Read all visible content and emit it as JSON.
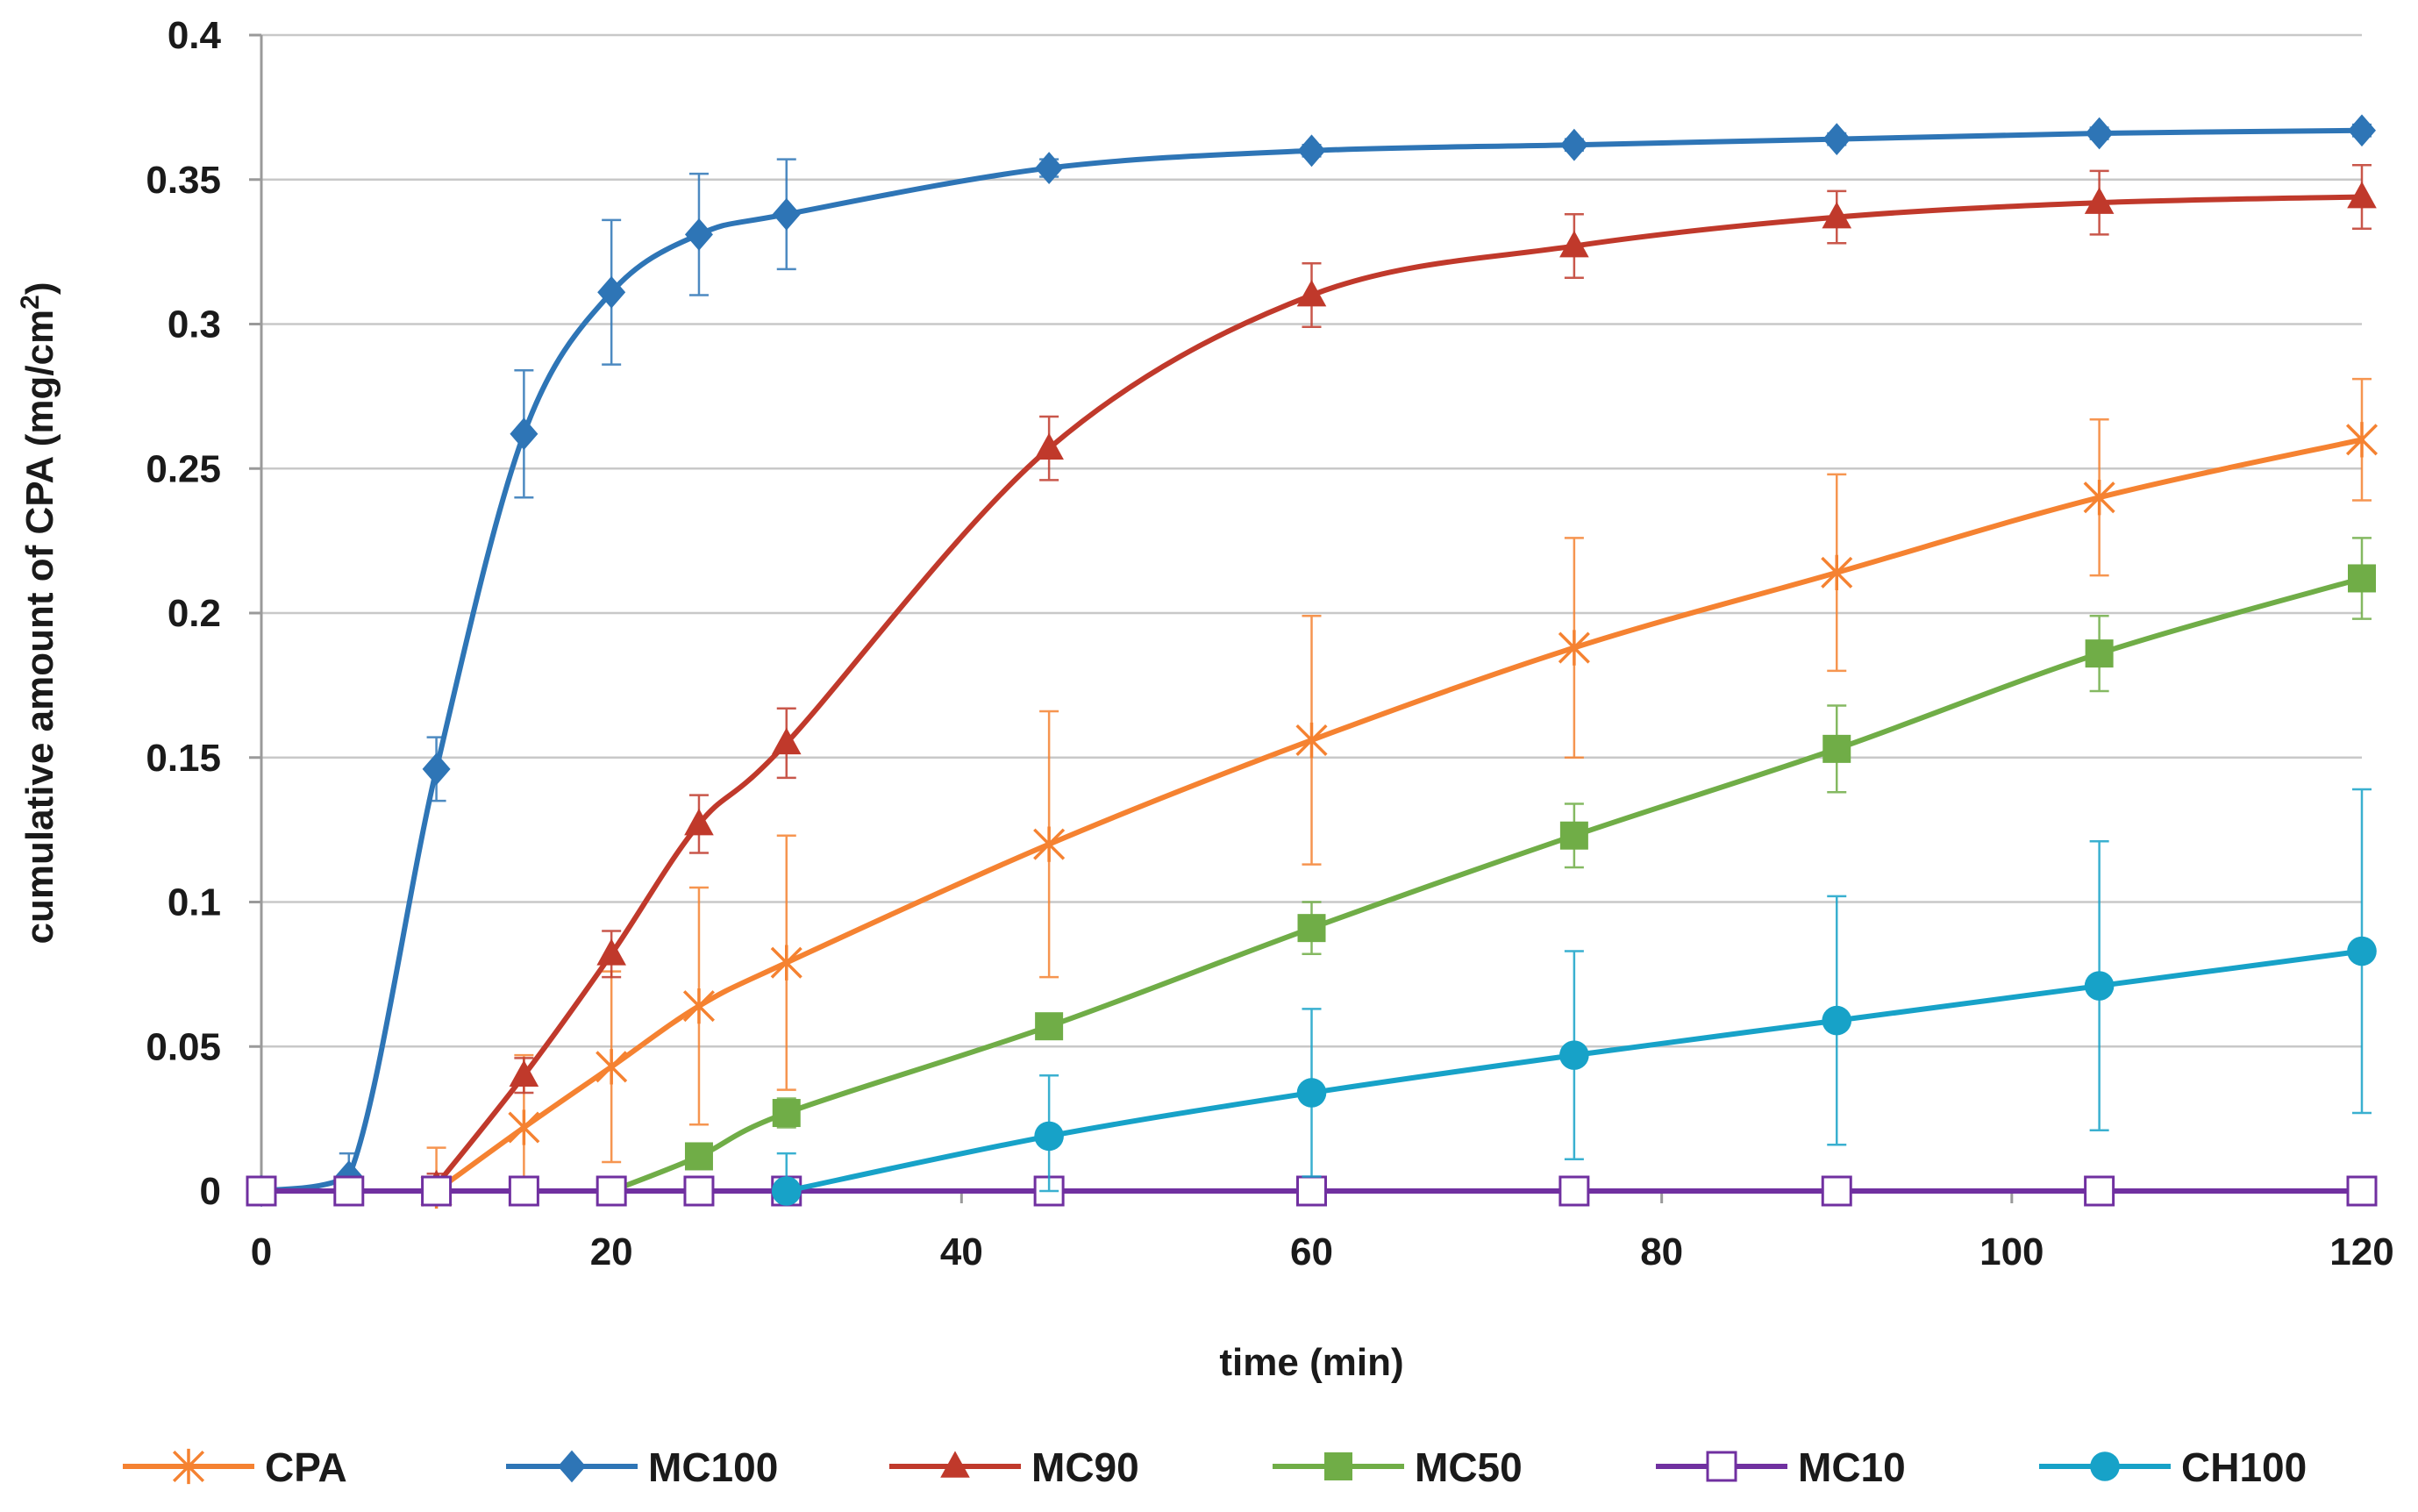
{
  "chart_data": {
    "type": "line",
    "title": "",
    "xlabel": "time (min)",
    "ylabel": "cumulative amount of CPA (mg/cm²)",
    "xlim": [
      0,
      120
    ],
    "ylim": [
      0,
      0.4
    ],
    "x_ticks": [
      0,
      20,
      40,
      60,
      80,
      100,
      120
    ],
    "x_tick_labels": [
      "0",
      "20",
      "40",
      "60",
      "80",
      "100",
      "120"
    ],
    "y_ticks": [
      0,
      0.05,
      0.1,
      0.15,
      0.2,
      0.25,
      0.3,
      0.35,
      0.4
    ],
    "y_tick_labels": [
      "0",
      "0.05",
      "0.1",
      "0.15",
      "0.2",
      "0.25",
      "0.3",
      "0.35",
      "0.4"
    ],
    "grid": "horizontal",
    "legend_position": "bottom",
    "series": [
      {
        "name": "CPA",
        "color": "#F58231",
        "marker": "star",
        "x": [
          10,
          15,
          20,
          25,
          30,
          45,
          60,
          75,
          90,
          105,
          120
        ],
        "y": [
          0,
          0.022,
          0.043,
          0.064,
          0.079,
          0.12,
          0.156,
          0.188,
          0.214,
          0.24,
          0.26
        ],
        "err": [
          0.015,
          0.025,
          0.033,
          0.041,
          0.044,
          0.046,
          0.043,
          0.038,
          0.034,
          0.027,
          0.021
        ]
      },
      {
        "name": "MC100",
        "color": "#2E75B6",
        "marker": "diamond",
        "x": [
          0,
          5,
          10,
          15,
          20,
          25,
          30,
          45,
          60,
          75,
          90,
          105,
          120
        ],
        "y": [
          0,
          0.005,
          0.146,
          0.262,
          0.311,
          0.331,
          0.338,
          0.354,
          0.36,
          0.362,
          0.364,
          0.366,
          0.367
        ],
        "err": [
          0,
          0.008,
          0.011,
          0.022,
          0.025,
          0.021,
          0.019,
          0.003,
          0.002,
          0.002,
          0.002,
          0.002,
          0.002
        ]
      },
      {
        "name": "MC90",
        "color": "#C0392B",
        "marker": "triangle",
        "x": [
          10,
          15,
          20,
          25,
          30,
          45,
          60,
          75,
          90,
          105,
          120
        ],
        "y": [
          0.002,
          0.04,
          0.082,
          0.127,
          0.155,
          0.257,
          0.31,
          0.327,
          0.337,
          0.342,
          0.344
        ],
        "err": [
          0.004,
          0.006,
          0.008,
          0.01,
          0.012,
          0.011,
          0.011,
          0.011,
          0.009,
          0.011,
          0.011
        ]
      },
      {
        "name": "MC50",
        "color": "#70AD47",
        "marker": "square",
        "x": [
          20,
          25,
          30,
          45,
          60,
          75,
          90,
          105,
          120
        ],
        "y": [
          0,
          0.012,
          0.027,
          0.057,
          0.091,
          0.123,
          0.153,
          0.186,
          0.212
        ],
        "err": [
          0,
          0.004,
          0.005,
          0.004,
          0.009,
          0.011,
          0.015,
          0.013,
          0.014
        ]
      },
      {
        "name": "MC10",
        "color": "#7030A0",
        "marker": "square-open",
        "x": [
          0,
          5,
          10,
          15,
          20,
          25,
          30,
          45,
          60,
          75,
          90,
          105,
          120
        ],
        "y": [
          0,
          0,
          0,
          0,
          0,
          0,
          0,
          0,
          0,
          0,
          0,
          0,
          0
        ],
        "err": [
          0,
          0,
          0,
          0,
          0,
          0,
          0,
          0,
          0,
          0,
          0,
          0,
          0
        ]
      },
      {
        "name": "CH100",
        "color": "#17A2C8",
        "marker": "circle",
        "x": [
          30,
          45,
          60,
          75,
          90,
          105,
          120
        ],
        "y": [
          0,
          0.019,
          0.034,
          0.047,
          0.059,
          0.071,
          0.083
        ],
        "err": [
          0.013,
          0.021,
          0.029,
          0.036,
          0.043,
          0.05,
          0.056
        ]
      }
    ]
  }
}
